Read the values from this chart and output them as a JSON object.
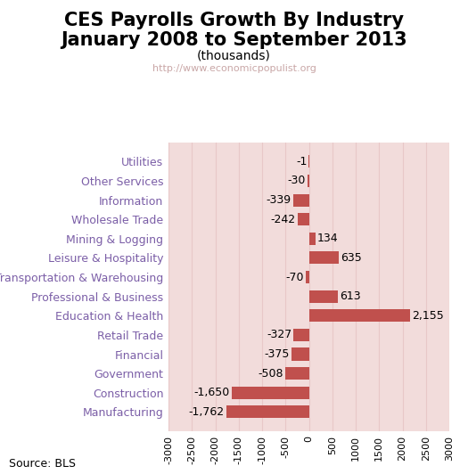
{
  "title_line1": "CES Payrolls Growth By Industry",
  "title_line2": "January 2008 to September 2013",
  "subtitle": "(thousands)",
  "watermark": "http://www.economicpopulist.org",
  "source": "Source: BLS",
  "categories": [
    "Utilities",
    "Other Services",
    "Information",
    "Wholesale Trade",
    "Mining & Logging",
    "Leisure & Hospitality",
    "Transportation & Warehousing",
    "Professional & Business",
    "Education & Health",
    "Retail Trade",
    "Financial",
    "Government",
    "Construction",
    "Manufacturing"
  ],
  "values": [
    -1,
    -30,
    -339,
    -242,
    134,
    635,
    -70,
    613,
    2155,
    -327,
    -375,
    -508,
    -1650,
    -1762
  ],
  "bar_color": "#c0504d",
  "plot_background": "#f2dcdb",
  "fig_background": "#ffffff",
  "xlim": [
    -3000,
    3000
  ],
  "xticks": [
    -3000,
    -2500,
    -2000,
    -1500,
    -1000,
    -500,
    0,
    500,
    1000,
    1500,
    2000,
    2500,
    3000
  ],
  "title_fontsize": 15,
  "subtitle_fontsize": 10,
  "label_fontsize": 9,
  "value_fontsize": 9,
  "tick_fontsize": 8,
  "watermark_color": "#c9a7a7",
  "grid_color": "#e8c8c8",
  "ylabel_color": "#7b5ea7",
  "value_label_color": "#000000"
}
